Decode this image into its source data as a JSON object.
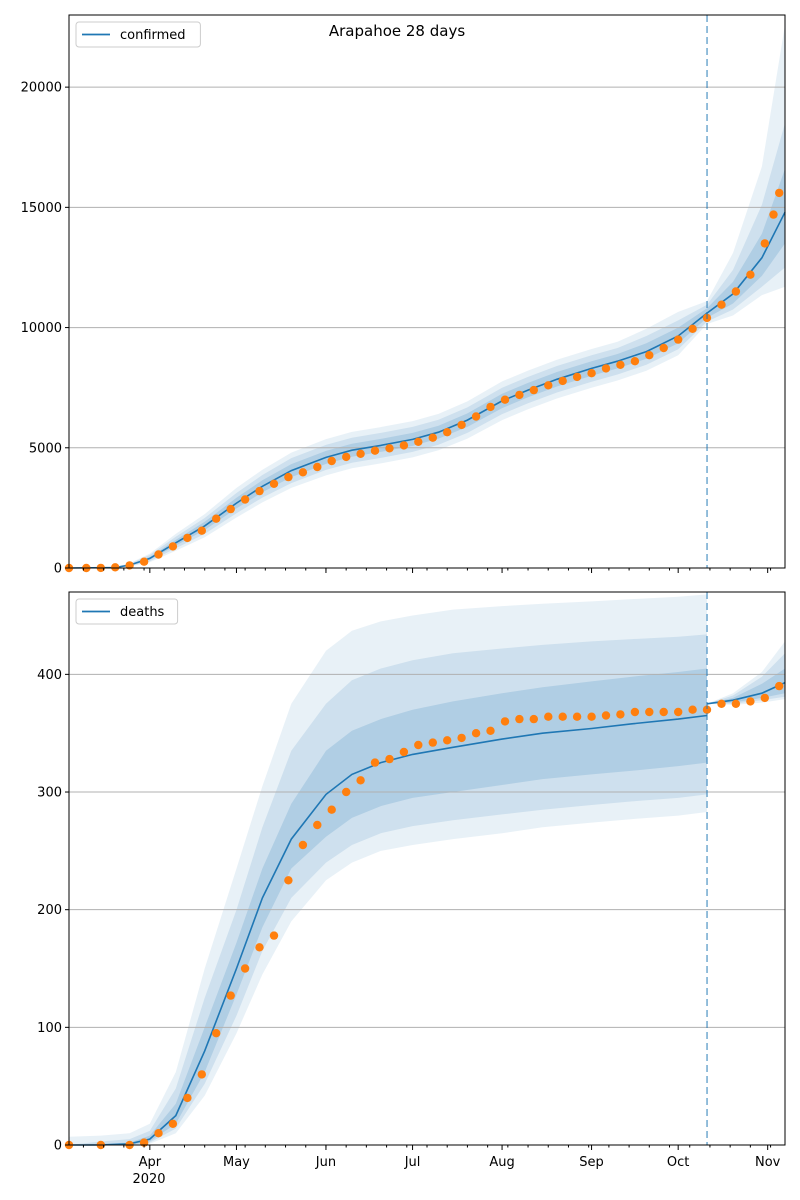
{
  "figure": {
    "title": "Arapahoe 28 days",
    "year_label": "2020"
  },
  "colors": {
    "model_line": "#1f77b4",
    "observed_points": "#ff7f0e",
    "band": "#1f77b4",
    "grid": "#b0b0b0",
    "axes": "#000000"
  },
  "chart_data": [
    {
      "type": "line",
      "panel": "top",
      "title": "Arapahoe 28 days",
      "legend": [
        "confirmed"
      ],
      "legend_position": "upper-left",
      "grid": "y",
      "x_type": "date",
      "xlim": [
        "2020-03-04",
        "2020-11-07"
      ],
      "ylim": [
        0,
        23000
      ],
      "yticks": [
        0,
        5000,
        10000,
        15000,
        20000
      ],
      "x_tick_labels": [
        {
          "date": "2020-04-01",
          "label": "Apr"
        },
        {
          "date": "2020-05-01",
          "label": "May"
        },
        {
          "date": "2020-06-01",
          "label": "Jun"
        },
        {
          "date": "2020-07-01",
          "label": "Jul"
        },
        {
          "date": "2020-08-01",
          "label": "Aug"
        },
        {
          "date": "2020-09-01",
          "label": "Sep"
        },
        {
          "date": "2020-10-01",
          "label": "Oct"
        },
        {
          "date": "2020-11-01",
          "label": "Nov"
        }
      ],
      "forecast_start": "2020-10-11",
      "model": {
        "name": "confirmed",
        "x": [
          "2020-03-04",
          "2020-03-20",
          "2020-03-25",
          "2020-04-01",
          "2020-04-10",
          "2020-04-20",
          "2020-05-01",
          "2020-05-10",
          "2020-05-20",
          "2020-06-01",
          "2020-06-10",
          "2020-06-20",
          "2020-07-01",
          "2020-07-10",
          "2020-07-20",
          "2020-08-01",
          "2020-08-10",
          "2020-08-20",
          "2020-09-01",
          "2020-09-10",
          "2020-09-20",
          "2020-10-01",
          "2020-10-11",
          "2020-10-20",
          "2020-10-30",
          "2020-11-07"
        ],
        "median": [
          0,
          20,
          120,
          400,
          1050,
          1750,
          2700,
          3400,
          4050,
          4600,
          4900,
          5100,
          5350,
          5650,
          6150,
          6950,
          7400,
          7850,
          8300,
          8600,
          9000,
          9650,
          10600,
          11400,
          12900,
          14800
        ],
        "band_50": [
          [
            0,
            0
          ],
          [
            15,
            25
          ],
          [
            100,
            140
          ],
          [
            340,
            460
          ],
          [
            930,
            1170
          ],
          [
            1580,
            1920
          ],
          [
            2480,
            2920
          ],
          [
            3150,
            3650
          ],
          [
            3780,
            4320
          ],
          [
            4330,
            4870
          ],
          [
            4630,
            5170
          ],
          [
            4830,
            5370
          ],
          [
            5080,
            5620
          ],
          [
            5380,
            5920
          ],
          [
            5870,
            6430
          ],
          [
            6650,
            7250
          ],
          [
            7100,
            7700
          ],
          [
            7550,
            8150
          ],
          [
            8000,
            8600
          ],
          [
            8300,
            8900
          ],
          [
            8700,
            9350
          ],
          [
            9350,
            10000
          ],
          [
            10400,
            10800
          ],
          [
            11000,
            11900
          ],
          [
            12150,
            13900
          ],
          [
            13500,
            16600
          ]
        ],
        "band_80": [
          [
            0,
            0
          ],
          [
            10,
            30
          ],
          [
            80,
            170
          ],
          [
            280,
            540
          ],
          [
            820,
            1300
          ],
          [
            1420,
            2080
          ],
          [
            2280,
            3120
          ],
          [
            2930,
            3870
          ],
          [
            3530,
            4570
          ],
          [
            4080,
            5120
          ],
          [
            4380,
            5420
          ],
          [
            4580,
            5620
          ],
          [
            4830,
            5870
          ],
          [
            5130,
            6170
          ],
          [
            5620,
            6680
          ],
          [
            6400,
            7500
          ],
          [
            6850,
            7950
          ],
          [
            7300,
            8400
          ],
          [
            7750,
            8850
          ],
          [
            8050,
            9150
          ],
          [
            8450,
            9650
          ],
          [
            9100,
            10300
          ],
          [
            10250,
            10950
          ],
          [
            10750,
            12400
          ],
          [
            11700,
            15100
          ],
          [
            12500,
            18500
          ]
        ],
        "band_95": [
          [
            0,
            0
          ],
          [
            5,
            40
          ],
          [
            60,
            200
          ],
          [
            240,
            600
          ],
          [
            720,
            1420
          ],
          [
            1280,
            2240
          ],
          [
            2100,
            3330
          ],
          [
            2730,
            4090
          ],
          [
            3330,
            4800
          ],
          [
            3850,
            5360
          ],
          [
            4150,
            5660
          ],
          [
            4350,
            5860
          ],
          [
            4600,
            6110
          ],
          [
            4900,
            6410
          ],
          [
            5380,
            6930
          ],
          [
            6150,
            7760
          ],
          [
            6600,
            8210
          ],
          [
            7050,
            8660
          ],
          [
            7500,
            9110
          ],
          [
            7800,
            9410
          ],
          [
            8200,
            9950
          ],
          [
            8850,
            10650
          ],
          [
            10150,
            11100
          ],
          [
            10500,
            13100
          ],
          [
            11350,
            16700
          ],
          [
            11700,
            22600
          ]
        ]
      },
      "observed": {
        "x": [
          "2020-03-04",
          "2020-03-10",
          "2020-03-15",
          "2020-03-20",
          "2020-03-25",
          "2020-03-30",
          "2020-04-04",
          "2020-04-09",
          "2020-04-14",
          "2020-04-19",
          "2020-04-24",
          "2020-04-29",
          "2020-05-04",
          "2020-05-09",
          "2020-05-14",
          "2020-05-19",
          "2020-05-24",
          "2020-05-29",
          "2020-06-03",
          "2020-06-08",
          "2020-06-13",
          "2020-06-18",
          "2020-06-23",
          "2020-06-28",
          "2020-07-03",
          "2020-07-08",
          "2020-07-13",
          "2020-07-18",
          "2020-07-23",
          "2020-07-28",
          "2020-08-02",
          "2020-08-07",
          "2020-08-12",
          "2020-08-17",
          "2020-08-22",
          "2020-08-27",
          "2020-09-01",
          "2020-09-06",
          "2020-09-11",
          "2020-09-16",
          "2020-09-21",
          "2020-09-26",
          "2020-10-01",
          "2020-10-06",
          "2020-10-11",
          "2020-10-16",
          "2020-10-21",
          "2020-10-26",
          "2020-10-31",
          "2020-11-03",
          "2020-11-05"
        ],
        "y": [
          0,
          0,
          5,
          30,
          110,
          260,
          560,
          900,
          1250,
          1550,
          2050,
          2450,
          2850,
          3200,
          3500,
          3780,
          3980,
          4200,
          4450,
          4620,
          4750,
          4880,
          4980,
          5100,
          5250,
          5420,
          5650,
          5950,
          6300,
          6700,
          7000,
          7200,
          7400,
          7600,
          7780,
          7950,
          8100,
          8300,
          8450,
          8600,
          8850,
          9150,
          9500,
          9950,
          10400,
          10950,
          11500,
          12200,
          13500,
          14700,
          15600
        ]
      }
    },
    {
      "type": "line",
      "panel": "bottom",
      "legend": [
        "deaths"
      ],
      "legend_position": "upper-left",
      "grid": "y",
      "x_type": "date",
      "xlim": [
        "2020-03-04",
        "2020-11-07"
      ],
      "ylim": [
        0,
        470
      ],
      "yticks": [
        0,
        100,
        200,
        300,
        400
      ],
      "x_tick_labels": [
        {
          "date": "2020-04-01",
          "label": "Apr"
        },
        {
          "date": "2020-05-01",
          "label": "May"
        },
        {
          "date": "2020-06-01",
          "label": "Jun"
        },
        {
          "date": "2020-07-01",
          "label": "Jul"
        },
        {
          "date": "2020-08-01",
          "label": "Aug"
        },
        {
          "date": "2020-09-01",
          "label": "Sep"
        },
        {
          "date": "2020-10-01",
          "label": "Oct"
        },
        {
          "date": "2020-11-01",
          "label": "Nov"
        }
      ],
      "forecast_start": "2020-10-11",
      "model": {
        "name": "deaths",
        "x": [
          "2020-03-04",
          "2020-03-15",
          "2020-03-25",
          "2020-04-01",
          "2020-04-10",
          "2020-04-20",
          "2020-05-01",
          "2020-05-10",
          "2020-05-20",
          "2020-06-01",
          "2020-06-10",
          "2020-06-20",
          "2020-07-01",
          "2020-07-15",
          "2020-08-01",
          "2020-08-15",
          "2020-09-01",
          "2020-09-15",
          "2020-10-01",
          "2020-10-11"
        ],
        "median": [
          0,
          0,
          1,
          5,
          25,
          80,
          150,
          210,
          260,
          298,
          315,
          325,
          332,
          338,
          345,
          350,
          354,
          358,
          362,
          365
        ],
        "band_50": [
          [
            0,
            0
          ],
          [
            0,
            1
          ],
          [
            0,
            2
          ],
          [
            3,
            8
          ],
          [
            18,
            35
          ],
          [
            62,
            100
          ],
          [
            128,
            172
          ],
          [
            185,
            235
          ],
          [
            235,
            290
          ],
          [
            262,
            335
          ],
          [
            278,
            352
          ],
          [
            288,
            362
          ],
          [
            295,
            370
          ],
          [
            300,
            377
          ],
          [
            306,
            384
          ],
          [
            311,
            389
          ],
          [
            315,
            394
          ],
          [
            318,
            398
          ],
          [
            322,
            402
          ],
          [
            325,
            405
          ]
        ],
        "band_80": [
          [
            0,
            0
          ],
          [
            0,
            3
          ],
          [
            0,
            5
          ],
          [
            2,
            12
          ],
          [
            14,
            48
          ],
          [
            52,
            125
          ],
          [
            110,
            200
          ],
          [
            165,
            270
          ],
          [
            210,
            335
          ],
          [
            240,
            375
          ],
          [
            255,
            395
          ],
          [
            265,
            405
          ],
          [
            271,
            412
          ],
          [
            276,
            418
          ],
          [
            281,
            422
          ],
          [
            285,
            425
          ],
          [
            289,
            428
          ],
          [
            292,
            430
          ],
          [
            295,
            432
          ],
          [
            298,
            434
          ]
        ],
        "band_95": [
          [
            0,
            7
          ],
          [
            0,
            8
          ],
          [
            0,
            10
          ],
          [
            1,
            18
          ],
          [
            10,
            62
          ],
          [
            42,
            150
          ],
          [
            95,
            235
          ],
          [
            145,
            305
          ],
          [
            190,
            375
          ],
          [
            225,
            420
          ],
          [
            240,
            437
          ],
          [
            250,
            445
          ],
          [
            255,
            450
          ],
          [
            260,
            455
          ],
          [
            265,
            458
          ],
          [
            270,
            460
          ],
          [
            274,
            462
          ],
          [
            277,
            464
          ],
          [
            280,
            466
          ],
          [
            283,
            468
          ]
        ]
      },
      "forecast": {
        "x": [
          "2020-10-11",
          "2020-10-20",
          "2020-10-30",
          "2020-11-07"
        ],
        "median": [
          375,
          378,
          384,
          393
        ],
        "band_50": [
          [
            375,
            375
          ],
          [
            376,
            380
          ],
          [
            380,
            392
          ],
          [
            384,
            405
          ]
        ],
        "band_80": [
          [
            375,
            375
          ],
          [
            375,
            382
          ],
          [
            378,
            398
          ],
          [
            381,
            418
          ]
        ],
        "band_95": [
          [
            375,
            375
          ],
          [
            374,
            384
          ],
          [
            376,
            402
          ],
          [
            379,
            428
          ]
        ]
      },
      "observed": {
        "x": [
          "2020-03-04",
          "2020-03-15",
          "2020-03-25",
          "2020-03-30",
          "2020-04-04",
          "2020-04-09",
          "2020-04-14",
          "2020-04-19",
          "2020-04-24",
          "2020-04-29",
          "2020-05-04",
          "2020-05-09",
          "2020-05-14",
          "2020-05-19",
          "2020-05-24",
          "2020-05-29",
          "2020-06-03",
          "2020-06-08",
          "2020-06-13",
          "2020-06-18",
          "2020-06-23",
          "2020-06-28",
          "2020-07-03",
          "2020-07-08",
          "2020-07-13",
          "2020-07-18",
          "2020-07-23",
          "2020-07-28",
          "2020-08-02",
          "2020-08-07",
          "2020-08-12",
          "2020-08-17",
          "2020-08-22",
          "2020-08-27",
          "2020-09-01",
          "2020-09-06",
          "2020-09-11",
          "2020-09-16",
          "2020-09-21",
          "2020-09-26",
          "2020-10-01",
          "2020-10-06",
          "2020-10-11",
          "2020-10-16",
          "2020-10-21",
          "2020-10-26",
          "2020-10-31",
          "2020-11-05"
        ],
        "y": [
          0,
          0,
          0,
          2,
          10,
          18,
          40,
          60,
          95,
          127,
          150,
          168,
          178,
          225,
          255,
          272,
          285,
          300,
          310,
          325,
          328,
          334,
          340,
          342,
          344,
          346,
          350,
          352,
          360,
          362,
          362,
          364,
          364,
          364,
          364,
          365,
          366,
          368,
          368,
          368,
          368,
          370,
          370,
          375,
          375,
          377,
          380,
          390
        ]
      }
    }
  ]
}
